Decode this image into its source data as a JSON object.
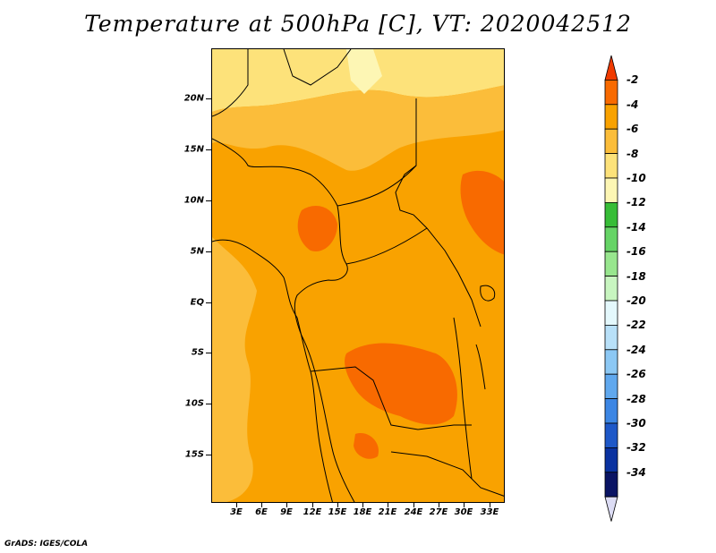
{
  "title": "Temperature at 500hPa [C], VT: 2020042512",
  "credit": "GrADS: IGES/COLA",
  "map": {
    "lat_labels": [
      "20N",
      "15N",
      "10N",
      "5N",
      "EQ",
      "5S",
      "10S",
      "15S"
    ],
    "lon_labels": [
      "3E",
      "6E",
      "9E",
      "12E",
      "15E",
      "18E",
      "21E",
      "24E",
      "27E",
      "30E",
      "33E"
    ]
  },
  "colorbar": {
    "labels": [
      "-2",
      "-4",
      "-6",
      "-8",
      "-10",
      "-12",
      "-14",
      "-16",
      "-18",
      "-20",
      "-22",
      "-24",
      "-26",
      "-28",
      "-30",
      "-32",
      "-34"
    ],
    "colors": [
      "#f03a00",
      "#f86a00",
      "#f9a200",
      "#fbbd3a",
      "#fde27a",
      "#fdf6b4",
      "#37bd37",
      "#66d466",
      "#98e68e",
      "#c8f5c0",
      "#e4f8fc",
      "#b8e0f8",
      "#8cc8f4",
      "#60a8ee",
      "#3c86e4",
      "#1e58c8",
      "#0a32a0",
      "#0a1464",
      "#dcdcf4"
    ]
  }
}
